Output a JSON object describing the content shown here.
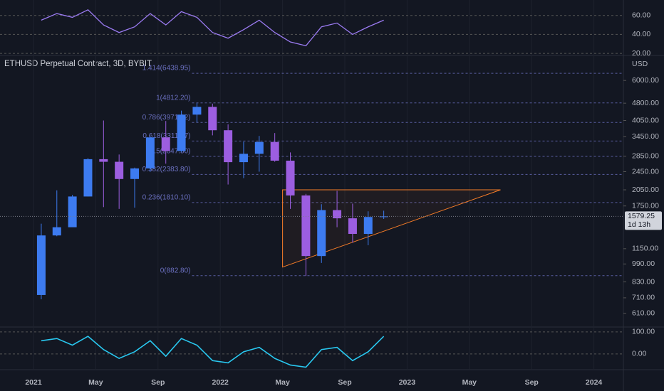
{
  "chart_data": {
    "type": "candlestick",
    "title": "ETHUSD Perpetual Contract, 3D, BYBIT",
    "currency": "USD",
    "x": [
      "2021-01",
      "2021-02",
      "2021-03",
      "2021-04",
      "2021-05",
      "2021-06",
      "2021-07",
      "2021-08",
      "2021-09",
      "2021-10",
      "2021-11",
      "2021-12",
      "2022-01",
      "2022-02",
      "2022-03",
      "2022-04",
      "2022-05",
      "2022-06",
      "2022-07",
      "2022-08",
      "2022-09",
      "2022-10",
      "2022-11"
    ],
    "open": [
      730,
      1310,
      1420,
      1920,
      2770,
      2700,
      2280,
      2530,
      3430,
      3000,
      4290,
      4630,
      3680,
      2690,
      2920,
      3280,
      2730,
      1940,
      1070,
      1680,
      1550,
      1330,
      1570
    ],
    "high": [
      1470,
      2040,
      1950,
      2800,
      4050,
      2900,
      2550,
      3470,
      4030,
      4460,
      4800,
      4780,
      3900,
      3290,
      3480,
      3580,
      2960,
      1970,
      1780,
      2030,
      1790,
      1660,
      1670
    ],
    "low": [
      700,
      1300,
      1430,
      1920,
      1730,
      1700,
      1720,
      2450,
      2650,
      2970,
      3980,
      3500,
      2160,
      2300,
      2450,
      2700,
      1700,
      880,
      1000,
      1420,
      1220,
      1190,
      1540
    ],
    "close": [
      1310,
      1420,
      1920,
      2770,
      2700,
      2280,
      2530,
      3430,
      3000,
      4290,
      4630,
      3680,
      2690,
      2920,
      3280,
      2730,
      1940,
      1070,
      1680,
      1550,
      1330,
      1570,
      1579.25
    ],
    "up_color": "#3d7bf0",
    "down_color": "#9c5ee0",
    "ylim": [
      533,
      7670
    ],
    "log_scale": true,
    "yticks": [
      {
        "value": 6000,
        "label": "6000.00"
      },
      {
        "value": 4800,
        "label": "4800.00"
      },
      {
        "value": 4050,
        "label": "4050.00"
      },
      {
        "value": 3450,
        "label": "3450.00"
      },
      {
        "value": 2850,
        "label": "2850.00"
      },
      {
        "value": 2450,
        "label": "2450.00"
      },
      {
        "value": 2050,
        "label": "2050.00"
      },
      {
        "value": 1750,
        "label": "1750.00"
      },
      {
        "value": 1150,
        "label": "1150.00"
      },
      {
        "value": 990,
        "label": "990.00"
      },
      {
        "value": 830,
        "label": "830.00"
      },
      {
        "value": 710,
        "label": "710.00"
      },
      {
        "value": 610,
        "label": "610.00"
      }
    ],
    "xticks": [
      {
        "value": "2021-01",
        "label": "2021"
      },
      {
        "value": "2021-05",
        "label": "May"
      },
      {
        "value": "2021-09",
        "label": "Sep"
      },
      {
        "value": "2022-01",
        "label": "2022"
      },
      {
        "value": "2022-05",
        "label": "May"
      },
      {
        "value": "2022-09",
        "label": "Sep"
      },
      {
        "value": "2023-01",
        "label": "2023"
      },
      {
        "value": "2023-05",
        "label": "May"
      },
      {
        "value": "2023-09",
        "label": "Sep"
      },
      {
        "value": "2024-01",
        "label": "2024"
      }
    ],
    "last_price": {
      "value": 1579.25,
      "label": "1579.25"
    },
    "countdown": "1d 13h",
    "fib_levels": [
      {
        "value": 6438.95,
        "label": "1.414(6438.95)"
      },
      {
        "value": 4812.2,
        "label": "1(4812.20)"
      },
      {
        "value": 3971.32,
        "label": "0.786(3971.32)"
      },
      {
        "value": 3311.17,
        "label": "0.618(3311.17)"
      },
      {
        "value": 2847.5,
        "label": "0.5(2847.50)"
      },
      {
        "value": 2383.8,
        "label": "0.382(2383.80)"
      },
      {
        "value": 1810.1,
        "label": "0.236(1810.10)"
      },
      {
        "value": 882.8,
        "label": "0(882.80)"
      }
    ],
    "fib_color": "#6a6fbf",
    "triangle": {
      "x": [
        "2022-05",
        "2023-07",
        "2022-05"
      ],
      "y": [
        2050,
        2050,
        960
      ],
      "color": "#f57c28"
    },
    "rsi": {
      "values": [
        55,
        62,
        58,
        66,
        50,
        42,
        48,
        62,
        50,
        64,
        58,
        42,
        36,
        45,
        55,
        42,
        32,
        28,
        48,
        52,
        40,
        48,
        55
      ],
      "color": "#9b7bf2",
      "ylim": [
        17.8,
        76.3
      ],
      "yticks": [
        {
          "value": 60,
          "label": "60.00"
        },
        {
          "value": 40,
          "label": "40.00"
        },
        {
          "value": 20,
          "label": "20.00"
        }
      ]
    },
    "oscillator": {
      "values": [
        60,
        70,
        40,
        80,
        20,
        -20,
        10,
        60,
        -10,
        70,
        40,
        -30,
        -40,
        10,
        30,
        -20,
        -50,
        -60,
        20,
        30,
        -30,
        10,
        80
      ],
      "color": "#29c8f0",
      "ylim": [
        -71,
        122
      ],
      "yticks": [
        {
          "value": 100,
          "label": "100.00"
        },
        {
          "value": 0,
          "label": "0.00"
        }
      ]
    }
  }
}
